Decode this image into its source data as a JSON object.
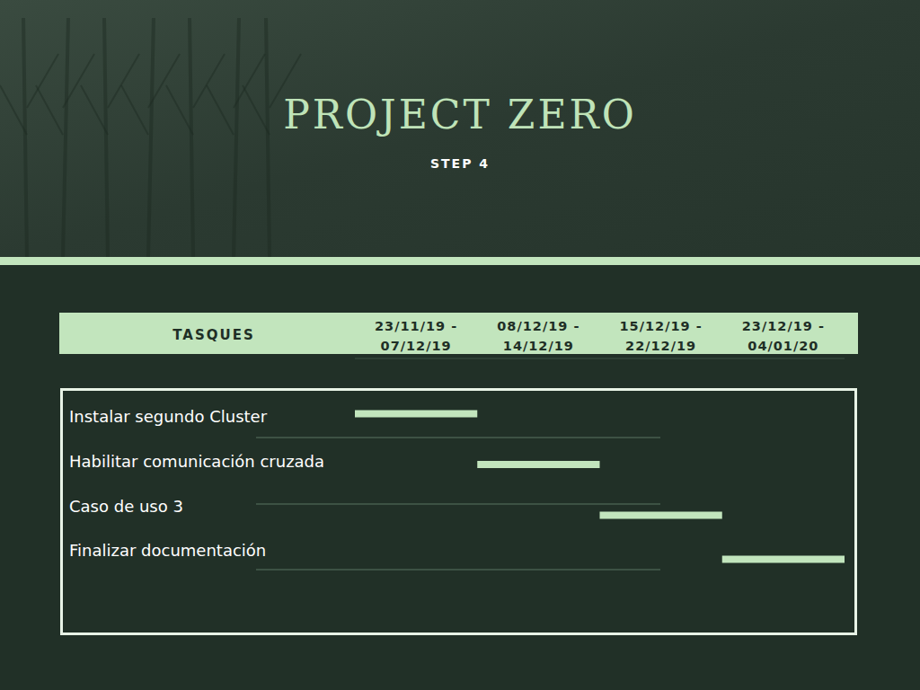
{
  "chart_data": {
    "type": "gantt",
    "title": "PROJECT ZERO",
    "subtitle": "STEP 4",
    "y_label": "TASQUES",
    "categories": [
      "Instalar segundo Cluster",
      "Habilitar comunicación cruzada",
      "Caso de uso 3",
      "Finalizar documentación"
    ],
    "start": [
      0,
      1,
      2,
      3
    ],
    "end": [
      1,
      2,
      3,
      4
    ],
    "color": "#c2e5bd",
    "xlim": [
      0,
      4
    ],
    "xticks": [
      {
        "value": 0.5,
        "label": "23/11/19 - 07/12/19"
      },
      {
        "value": 1.5,
        "label": "08/12/19 - 14/12/19"
      },
      {
        "value": 2.5,
        "label": "15/12/19 - 22/12/19"
      },
      {
        "value": 3.5,
        "label": "23/12/19 - 04/01/20"
      }
    ]
  }
}
